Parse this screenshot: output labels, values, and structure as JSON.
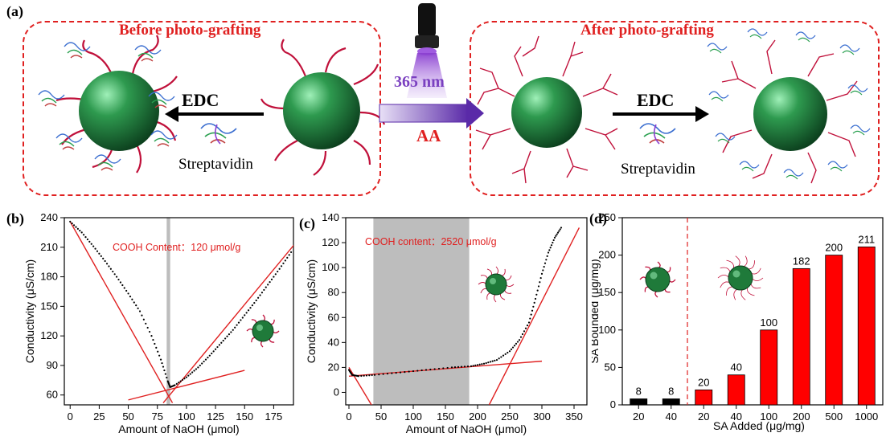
{
  "panel_labels": {
    "a": "(a)",
    "b": "(b)",
    "c": "(c)",
    "d": "(d)"
  },
  "schematic": {
    "before_title": "Before photo-grafting",
    "after_title": "After photo-grafting",
    "edc_left": "EDC",
    "edc_right": "EDC",
    "strep_left": "Streptavidin",
    "strep_right": "Streptavidin",
    "uv_label": "365 nm",
    "aa_label": "AA"
  },
  "colors": {
    "red": "#e02020",
    "sphere": "#1f7a3a",
    "bar_black": "#000000",
    "bar_red": "#ff0000",
    "shade": "#bdbdbd"
  },
  "chart_data": [
    {
      "type": "scatter",
      "panel": "b",
      "xlabel": "Amount of NaOH (μmol)",
      "ylabel": "Conductivity (μS/cm)",
      "xlim": [
        -5,
        192
      ],
      "ylim": [
        50,
        240
      ],
      "xticks": [
        0,
        25,
        50,
        75,
        100,
        125,
        150,
        175
      ],
      "yticks": [
        60,
        90,
        120,
        150,
        180,
        210,
        240
      ],
      "annotation": "COOH Content：120 μmol/g",
      "shaded_x": [
        83,
        86
      ],
      "points": [
        [
          0,
          236
        ],
        [
          10,
          225
        ],
        [
          20,
          211
        ],
        [
          30,
          196
        ],
        [
          40,
          180
        ],
        [
          50,
          163
        ],
        [
          60,
          145
        ],
        [
          70,
          120
        ],
        [
          78,
          96
        ],
        [
          84,
          74
        ],
        [
          86,
          68
        ],
        [
          90,
          70
        ],
        [
          100,
          78
        ],
        [
          110,
          88
        ],
        [
          120,
          100
        ],
        [
          130,
          113
        ],
        [
          140,
          126
        ],
        [
          150,
          141
        ],
        [
          160,
          156
        ],
        [
          170,
          172
        ],
        [
          180,
          188
        ],
        [
          190,
          205
        ]
      ],
      "fit_lines": [
        {
          "x": [
            0,
            88
          ],
          "y": [
            236,
            52
          ]
        },
        {
          "x": [
            80,
            195
          ],
          "y": [
            52,
            216
          ]
        },
        {
          "x": [
            50,
            150
          ],
          "y": [
            55,
            85
          ]
        }
      ]
    },
    {
      "type": "scatter",
      "panel": "c",
      "xlabel": "Amount of NaOH (μmol)",
      "ylabel": "Conductivity (μS/cm)",
      "xlim": [
        -5,
        370
      ],
      "ylim": [
        -10,
        140
      ],
      "xticks": [
        0,
        50,
        100,
        150,
        200,
        250,
        300,
        350
      ],
      "yticks": [
        0,
        20,
        40,
        60,
        80,
        100,
        120,
        140
      ],
      "annotation": "COOH content：2520 μmol/g",
      "shaded_x": [
        38,
        187
      ],
      "points": [
        [
          0,
          18
        ],
        [
          5,
          14
        ],
        [
          15,
          13
        ],
        [
          40,
          14
        ],
        [
          80,
          16
        ],
        [
          120,
          18
        ],
        [
          160,
          20
        ],
        [
          190,
          21
        ],
        [
          210,
          23
        ],
        [
          230,
          26
        ],
        [
          250,
          33
        ],
        [
          265,
          42
        ],
        [
          280,
          56
        ],
        [
          290,
          75
        ],
        [
          300,
          95
        ],
        [
          310,
          112
        ],
        [
          320,
          124
        ],
        [
          330,
          132
        ]
      ],
      "fit_lines": [
        {
          "x": [
            0,
            35
          ],
          "y": [
            20,
            -10
          ]
        },
        {
          "x": [
            0,
            300
          ],
          "y": [
            13,
            25
          ]
        },
        {
          "x": [
            218,
            358
          ],
          "y": [
            -10,
            132
          ]
        }
      ]
    },
    {
      "type": "bar",
      "panel": "d",
      "xlabel": "SA Added (μg/mg)",
      "ylabel": "SA Bounded (μg/mg)",
      "ylim": [
        0,
        250
      ],
      "yticks": [
        0,
        50,
        100,
        150,
        200,
        250
      ],
      "categories": [
        "20",
        "40",
        "20",
        "40",
        "100",
        "200",
        "500",
        "1000"
      ],
      "values": [
        8,
        8,
        20,
        40,
        100,
        182,
        200,
        211
      ],
      "value_labels": [
        "8",
        "8",
        "20",
        "40",
        "100",
        "182",
        "200",
        "211"
      ],
      "groups": [
        "black",
        "black",
        "red",
        "red",
        "red",
        "red",
        "red",
        "red"
      ]
    }
  ]
}
